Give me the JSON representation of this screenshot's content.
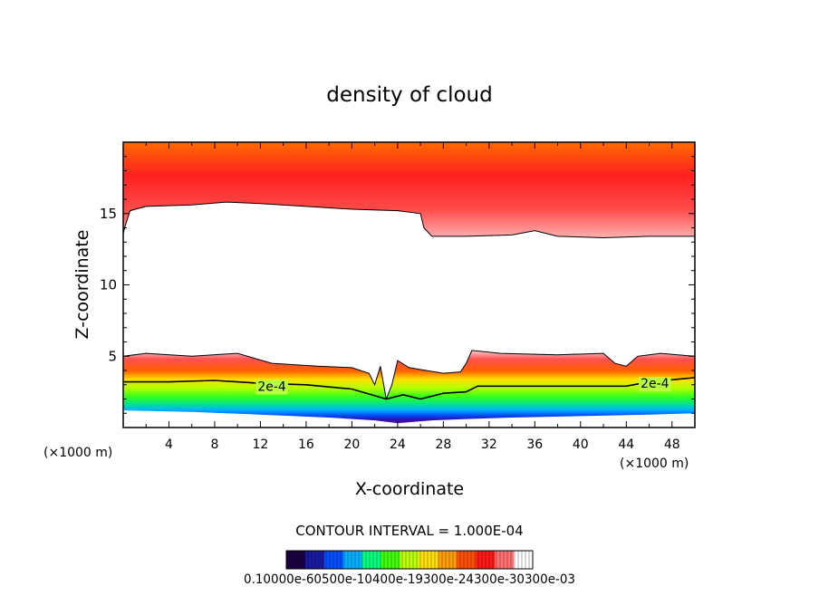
{
  "chart_data": {
    "type": "heatmap",
    "title": "density of cloud",
    "xlabel": "X-coordinate",
    "ylabel": "Z-coordinate",
    "x_unit_left": "(×1000 m)",
    "x_unit_right": "(×1000 m)",
    "xlim": [
      0,
      50
    ],
    "ylim": [
      0,
      20
    ],
    "x_ticks": [
      4,
      8,
      12,
      16,
      20,
      24,
      28,
      32,
      36,
      40,
      44,
      48
    ],
    "y_ticks": [
      5,
      10,
      15
    ],
    "contour_interval_text": "CONTOUR INTERVAL = 1.000E-04",
    "contour_labels": [
      {
        "text": "2e-4",
        "x": 13.0,
        "z": 2.9
      },
      {
        "text": "2e-4",
        "x": 46.5,
        "z": 3.1
      }
    ],
    "colorbar_label_text": "0.10000e-60500e-10400e-19300e-24300e-30300e-03",
    "colorbar_colors": [
      "#1a0040",
      "#1a1aa0",
      "#0050ff",
      "#00b0ff",
      "#00ff80",
      "#40ff00",
      "#c0ff00",
      "#ffe000",
      "#ffa000",
      "#ff5000",
      "#ff1a1a",
      "#ff7070",
      "#ffffff"
    ],
    "upper_layer_boundary": [
      [
        0,
        13.6
      ],
      [
        0.2,
        14.2
      ],
      [
        0.6,
        15.2
      ],
      [
        2,
        15.5
      ],
      [
        6,
        15.6
      ],
      [
        9,
        15.8
      ],
      [
        12,
        15.7
      ],
      [
        16,
        15.5
      ],
      [
        20,
        15.3
      ],
      [
        24,
        15.2
      ],
      [
        26,
        15.0
      ],
      [
        26.3,
        14.0
      ],
      [
        27,
        13.4
      ],
      [
        30,
        13.4
      ],
      [
        34,
        13.5
      ],
      [
        36,
        13.8
      ],
      [
        38,
        13.4
      ],
      [
        42,
        13.3
      ],
      [
        46,
        13.4
      ],
      [
        50,
        13.4
      ]
    ],
    "lower_layer_top": [
      [
        0,
        5.0
      ],
      [
        2,
        5.2
      ],
      [
        6,
        5.0
      ],
      [
        10,
        5.2
      ],
      [
        13,
        4.5
      ],
      [
        17,
        4.3
      ],
      [
        20,
        4.2
      ],
      [
        21.5,
        3.8
      ],
      [
        22,
        3.0
      ],
      [
        22.5,
        4.3
      ],
      [
        23,
        2.0
      ],
      [
        23.5,
        3.0
      ],
      [
        24,
        4.7
      ],
      [
        25,
        4.2
      ],
      [
        28,
        3.8
      ],
      [
        29.5,
        3.9
      ],
      [
        30,
        4.5
      ],
      [
        30.5,
        5.4
      ],
      [
        33,
        5.2
      ],
      [
        38,
        5.1
      ],
      [
        42,
        5.2
      ],
      [
        43,
        4.5
      ],
      [
        44,
        4.3
      ],
      [
        45,
        5.0
      ],
      [
        47,
        5.2
      ],
      [
        50,
        5.0
      ]
    ],
    "contour_2e4": [
      [
        0,
        3.2
      ],
      [
        4,
        3.2
      ],
      [
        8,
        3.3
      ],
      [
        12,
        3.1
      ],
      [
        16,
        3.0
      ],
      [
        20,
        2.7
      ],
      [
        23,
        2.0
      ],
      [
        24.5,
        2.3
      ],
      [
        26,
        2.0
      ],
      [
        28,
        2.4
      ],
      [
        30,
        2.5
      ],
      [
        31,
        2.9
      ],
      [
        36,
        2.9
      ],
      [
        40,
        2.9
      ],
      [
        44,
        2.9
      ],
      [
        46,
        3.2
      ],
      [
        50,
        3.5
      ]
    ],
    "lower_layer_bottom": [
      [
        0,
        1.2
      ],
      [
        6,
        1.1
      ],
      [
        12,
        0.9
      ],
      [
        18,
        0.7
      ],
      [
        22,
        0.5
      ],
      [
        24,
        0.3
      ],
      [
        27,
        0.5
      ],
      [
        30,
        0.6
      ],
      [
        34,
        0.7
      ],
      [
        40,
        0.8
      ],
      [
        46,
        0.9
      ],
      [
        50,
        1.0
      ]
    ]
  }
}
